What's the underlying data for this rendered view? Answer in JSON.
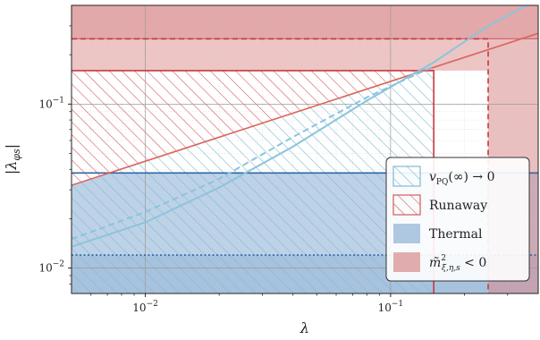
{
  "chart_data": {
    "type": "area",
    "xlabel": "λ",
    "ylabel": "|λφs|",
    "xscale": "log",
    "yscale": "log",
    "xlim": [
      0.005,
      0.4
    ],
    "ylim": [
      0.007,
      0.4
    ],
    "grid": true,
    "legend_placement": "right",
    "x_ticks": [
      {
        "value": 0.01,
        "base": "10",
        "exp": "−2"
      },
      {
        "value": 0.1,
        "base": "10",
        "exp": "−1"
      }
    ],
    "y_ticks": [
      {
        "value": 0.01,
        "base": "10",
        "exp": "−2"
      },
      {
        "value": 0.1,
        "base": "10",
        "exp": "−1"
      }
    ],
    "colors": {
      "red": "#c63a3f",
      "red_fill": "#d98b8c",
      "light_red_fill": "#e7b2b2",
      "blue": "#2c67a8",
      "blue_fill": "#7ea5cf",
      "light_blue": "#8cc4dc",
      "salmon": "#d9655c"
    },
    "legend": [
      {
        "key": "vpq",
        "style": "hatch-blue",
        "base": "v",
        "sub": "PQ",
        "rest": "(∞) → 0"
      },
      {
        "key": "runaway",
        "style": "hatch-red",
        "label": "Runaway"
      },
      {
        "key": "thermal",
        "style": "fill-blue",
        "label": "Thermal"
      },
      {
        "key": "mtilde",
        "style": "fill-red",
        "base": "m̃",
        "sup": "2",
        "sub": "ξ,η,s",
        "rest": " < 0"
      }
    ],
    "regions": {
      "top_band_y": 0.25,
      "thermal_solid_y": 0.038,
      "thermal_dotted_y": 0.012,
      "runaway_x_dashed": 0.25,
      "runaway_x_solid": 0.15,
      "runaway_y_solid": 0.16,
      "runaway_y_dashed": 0.25
    },
    "series": [
      {
        "style": "salmon-line",
        "x": [
          0.005,
          0.4
        ],
        "y": [
          0.032,
          0.27
        ]
      },
      {
        "style": "light-blue-solid",
        "x": [
          0.005,
          0.01,
          0.02,
          0.04,
          0.08,
          0.15,
          0.25,
          0.36
        ],
        "y": [
          0.0135,
          0.019,
          0.031,
          0.055,
          0.105,
          0.18,
          0.3,
          0.4
        ]
      },
      {
        "style": "light-blue-dashed",
        "x": [
          0.005,
          0.01,
          0.02,
          0.04,
          0.08,
          0.15
        ],
        "y": [
          0.015,
          0.022,
          0.035,
          0.063,
          0.11,
          0.17
        ]
      }
    ]
  }
}
